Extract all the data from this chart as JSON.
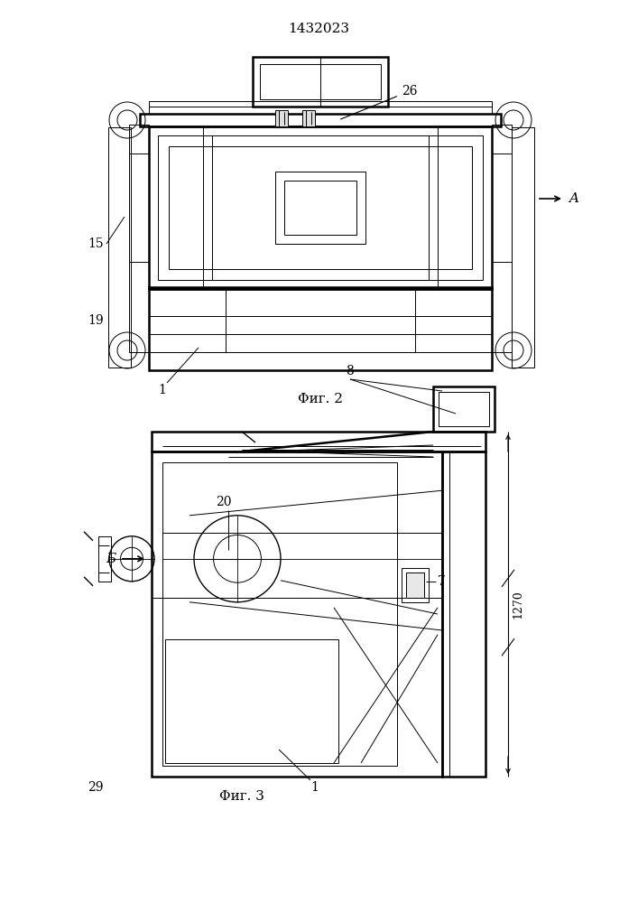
{
  "title": "1432023",
  "fig2_caption": "Φиг. 2",
  "fig3_caption": "Φиг. 3",
  "bg_color": "#ffffff",
  "line_color": "#000000"
}
